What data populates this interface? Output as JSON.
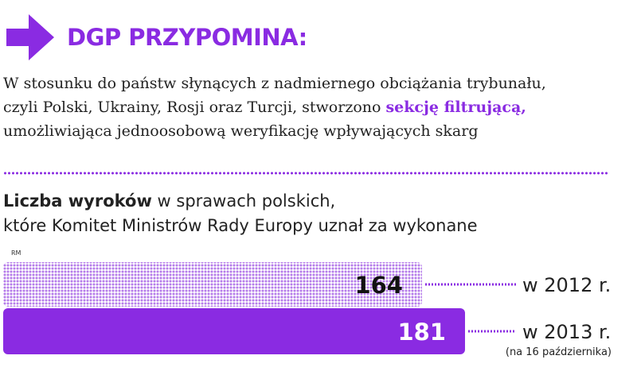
{
  "header": {
    "headline": "DGP PRZYPOMINA:",
    "arrow_icon": "right-arrow-icon",
    "accent": "#8a2be2"
  },
  "intro": {
    "line1": "W stosunku do państw słynących z nadmiernego obciążania trybunału,",
    "line2_prefix": "czyli Polski, Ukrainy, Rosji oraz Turcji, stworzono ",
    "line2_highlight": "sekcję filtrującą,",
    "line3": "umożliwiająca jednoosobową weryfikację wpływających skarg"
  },
  "chart_heading": {
    "bold": "Liczba wyroków",
    "rest": " w sprawach polskich,",
    "line2": "które Komitet Ministrów Rady Europy uznał za wykonane"
  },
  "source_tag": "RM",
  "chart_data": {
    "type": "bar",
    "orientation": "horizontal",
    "categories": [
      "w 2012 r.",
      "w 2013 r."
    ],
    "values": [
      164,
      181
    ],
    "value_labels": [
      "164",
      "181"
    ],
    "notes": [
      "",
      "(na 16 października)"
    ],
    "colors": [
      "#b57bea",
      "#8a2be2"
    ],
    "styles": [
      "dotted",
      "solid"
    ],
    "xlim": [
      0,
      181
    ]
  }
}
